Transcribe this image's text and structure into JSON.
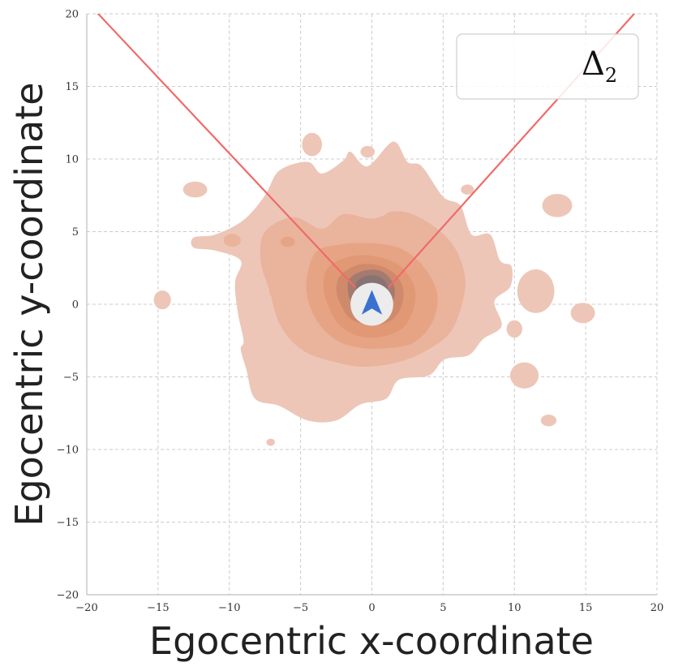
{
  "chart_data": {
    "type": "heatmap",
    "title": "",
    "xlabel": "Egocentric x-coordinate",
    "ylabel": "Egocentric y-coordinate",
    "xlim": [
      -20,
      20
    ],
    "ylim": [
      -20,
      20
    ],
    "x_ticks": [
      -20,
      -15,
      -10,
      -5,
      0,
      5,
      10,
      15,
      20
    ],
    "y_ticks": [
      -20,
      -15,
      -10,
      -5,
      0,
      5,
      10,
      15,
      20
    ],
    "x_tick_labels": [
      "−20",
      "−15",
      "−10",
      "−5",
      "0",
      "5",
      "10",
      "15",
      "20"
    ],
    "y_tick_labels": [
      "−20",
      "−15",
      "−10",
      "−5",
      "0",
      "5",
      "10",
      "15",
      "20"
    ],
    "grid": true,
    "legend": {
      "placement": "top-right",
      "entries": [
        {
          "symbol": "Δ",
          "subscript": "2"
        }
      ]
    },
    "colors": {
      "density_low": "#e8bfb0",
      "density_high": "#7a7070",
      "density_mid": "#e0a080",
      "view_lines": "#f06a6a",
      "agent": "#3a70d0",
      "agent_disc": "#ececec",
      "grid": "#cccccc"
    },
    "view_cone": {
      "apex": [
        0,
        1
      ],
      "left_line": [
        [
          -1.2,
          1.2
        ],
        [
          -19.2,
          20
        ]
      ],
      "right_line": [
        [
          1.2,
          1.2
        ],
        [
          18.4,
          20
        ]
      ]
    },
    "agent": {
      "center": [
        0,
        0
      ],
      "radius": 1.5,
      "marker": "arrow-up"
    },
    "density_contours": [
      {
        "level": 1,
        "points": [
          [
            -12.5,
            4.6
          ],
          [
            -11,
            4.8
          ],
          [
            -9,
            5.8
          ],
          [
            -7.5,
            7.5
          ],
          [
            -6.5,
            9.2
          ],
          [
            -4.5,
            9.8
          ],
          [
            -3.5,
            9
          ],
          [
            -2,
            9.9
          ],
          [
            -1.5,
            10.5
          ],
          [
            -0.3,
            9.5
          ],
          [
            1.5,
            11.2
          ],
          [
            2.5,
            9.8
          ],
          [
            3.5,
            9.5
          ],
          [
            5,
            7.4
          ],
          [
            6.2,
            6.8
          ],
          [
            7,
            4.8
          ],
          [
            8.3,
            4.8
          ],
          [
            9,
            3
          ],
          [
            9.8,
            2.6
          ],
          [
            9.7,
            1.2
          ],
          [
            8.6,
            0.2
          ],
          [
            9.1,
            -1.5
          ],
          [
            7.8,
            -2.4
          ],
          [
            6.8,
            -3.5
          ],
          [
            5.1,
            -3.8
          ],
          [
            4,
            -4.9
          ],
          [
            1.9,
            -5.2
          ],
          [
            1,
            -6.5
          ],
          [
            -0.8,
            -6.9
          ],
          [
            -2.5,
            -8
          ],
          [
            -4.5,
            -8
          ],
          [
            -6.5,
            -7
          ],
          [
            -8.2,
            -6.5
          ],
          [
            -8.8,
            -4.5
          ],
          [
            -9.2,
            -3.1
          ],
          [
            -9,
            -2.5
          ],
          [
            -9.4,
            -0.6
          ],
          [
            -9.6,
            1.5
          ],
          [
            -9.2,
            3
          ],
          [
            -11,
            3.7
          ],
          [
            -12.5,
            3.9
          ]
        ]
      },
      {
        "level": 2,
        "points": [
          [
            -7.5,
            5
          ],
          [
            -5.5,
            6
          ],
          [
            -3.5,
            5.2
          ],
          [
            -2,
            6.2
          ],
          [
            0,
            5.9
          ],
          [
            2,
            6.4
          ],
          [
            4,
            5.6
          ],
          [
            5.6,
            4.2
          ],
          [
            6.4,
            2.5
          ],
          [
            6.5,
            0.8
          ],
          [
            5.6,
            -1.8
          ],
          [
            3.8,
            -3.2
          ],
          [
            1.8,
            -4
          ],
          [
            -0.5,
            -4.3
          ],
          [
            -2.5,
            -4
          ],
          [
            -4.8,
            -3.2
          ],
          [
            -6.4,
            -1.5
          ],
          [
            -7.2,
            1
          ],
          [
            -7.8,
            3
          ]
        ]
      },
      {
        "level": 3,
        "points": [
          [
            -4,
            3.5
          ],
          [
            -2.3,
            4.1
          ],
          [
            0,
            4.2
          ],
          [
            2.1,
            3.8
          ],
          [
            3.7,
            2.5
          ],
          [
            4.6,
            0.6
          ],
          [
            4.2,
            -1.3
          ],
          [
            3,
            -2.6
          ],
          [
            1.3,
            -3
          ],
          [
            -0.8,
            -3
          ],
          [
            -2.6,
            -2.4
          ],
          [
            -4,
            -0.9
          ],
          [
            -4.6,
            1.2
          ]
        ]
      },
      {
        "level": 4,
        "points": [
          [
            -3,
            2.6
          ],
          [
            -1.5,
            3.3
          ],
          [
            0.2,
            3.3
          ],
          [
            1.9,
            2.7
          ],
          [
            2.9,
            1.4
          ],
          [
            3,
            0
          ],
          [
            2.3,
            -1.5
          ],
          [
            0.9,
            -2.2
          ],
          [
            -0.9,
            -2.2
          ],
          [
            -2.3,
            -1.4
          ],
          [
            -3.1,
            0
          ],
          [
            -3.4,
            1.4
          ]
        ]
      },
      {
        "level": 5,
        "points": [
          [
            -2.2,
            2
          ],
          [
            -1,
            2.7
          ],
          [
            0.4,
            2.7
          ],
          [
            1.6,
            2.1
          ],
          [
            2.2,
            1
          ],
          [
            2,
            -0.3
          ],
          [
            1.2,
            -1.2
          ],
          [
            -0.2,
            -1.4
          ],
          [
            -1.5,
            -1
          ],
          [
            -2.2,
            0
          ],
          [
            -2.5,
            1
          ]
        ]
      },
      {
        "level": 6,
        "points": [
          [
            -1.6,
            1.7
          ],
          [
            -0.6,
            2.3
          ],
          [
            0.6,
            2.3
          ],
          [
            1.4,
            1.6
          ],
          [
            1.6,
            0.6
          ],
          [
            1.1,
            -0.4
          ],
          [
            0,
            -0.7
          ],
          [
            -1,
            -0.4
          ],
          [
            -1.6,
            0.5
          ]
        ]
      },
      {
        "level": 7,
        "points": [
          [
            -1,
            1.6
          ],
          [
            -0.2,
            2
          ],
          [
            0.7,
            1.8
          ],
          [
            1.1,
            1.2
          ],
          [
            0.9,
            0.5
          ],
          [
            0,
            0.3
          ],
          [
            -0.8,
            0.5
          ],
          [
            -1.1,
            1
          ]
        ]
      }
    ],
    "density_blobs": [
      {
        "level": 1,
        "center": [
          -12.4,
          7.9
        ],
        "rx": 0.85,
        "ry": 0.55
      },
      {
        "level": 1,
        "center": [
          -14.7,
          0.3
        ],
        "rx": 0.6,
        "ry": 0.65
      },
      {
        "level": 1,
        "center": [
          -4.2,
          11
        ],
        "rx": 0.7,
        "ry": 0.8
      },
      {
        "level": 1,
        "center": [
          -0.3,
          10.5
        ],
        "rx": 0.5,
        "ry": 0.4
      },
      {
        "level": 1,
        "center": [
          6.7,
          7.9
        ],
        "rx": 0.45,
        "ry": 0.35
      },
      {
        "level": 1,
        "center": [
          13,
          6.8
        ],
        "rx": 1.05,
        "ry": 0.8
      },
      {
        "level": 1,
        "center": [
          11.5,
          0.9
        ],
        "rx": 1.3,
        "ry": 1.5
      },
      {
        "level": 1,
        "center": [
          14.8,
          -0.6
        ],
        "rx": 0.85,
        "ry": 0.7
      },
      {
        "level": 1,
        "center": [
          10,
          -1.7
        ],
        "rx": 0.55,
        "ry": 0.6
      },
      {
        "level": 1,
        "center": [
          10.7,
          -4.9
        ],
        "rx": 1.0,
        "ry": 0.9
      },
      {
        "level": 1,
        "center": [
          12.4,
          -8
        ],
        "rx": 0.55,
        "ry": 0.4
      },
      {
        "level": 1,
        "center": [
          -7.1,
          -9.5
        ],
        "rx": 0.3,
        "ry": 0.25
      },
      {
        "level": 2,
        "center": [
          -5.9,
          4.3
        ],
        "rx": 1.0,
        "ry": 0.6
      },
      {
        "level": 2,
        "center": [
          -9.8,
          4.4
        ],
        "rx": 0.6,
        "ry": 0.45
      },
      {
        "level": 2,
        "center": [
          1.5,
          6
        ],
        "rx": 0.6,
        "ry": 0.4
      },
      {
        "level": 2,
        "center": [
          -6.5,
          0.9
        ],
        "rx": 0.7,
        "ry": 0.6
      },
      {
        "level": 3,
        "center": [
          -5.9,
          4.3
        ],
        "rx": 0.5,
        "ry": 0.35
      }
    ]
  }
}
